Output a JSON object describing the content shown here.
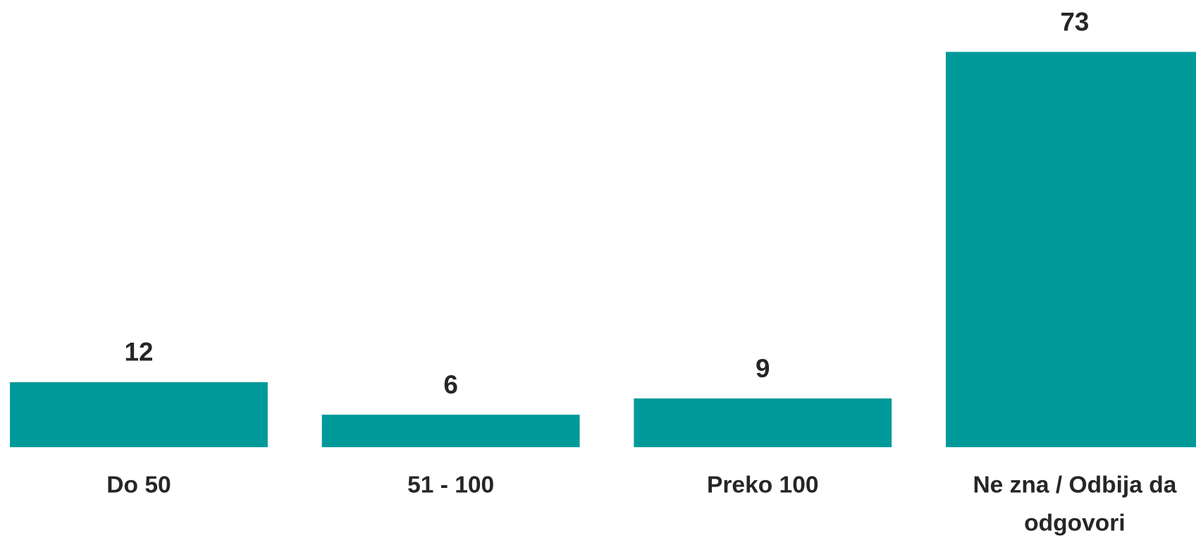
{
  "chart_data": {
    "type": "bar",
    "categories": [
      "Do 50",
      "51 - 100",
      "Preko 100",
      "Ne zna / Odbija da odgovori"
    ],
    "values": [
      12,
      6,
      9,
      73
    ],
    "color": "#009999"
  }
}
